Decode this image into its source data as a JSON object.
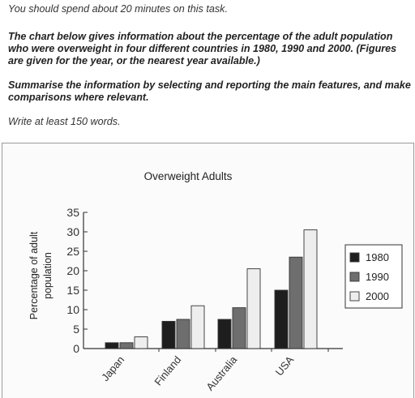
{
  "task": {
    "instruction": "You should spend about 20 minutes on this task.",
    "description": "The chart below gives information about the percentage of the adult population who were overweight in four different countries in 1980, 1990 and 2000. (Figures are given for the year, or the nearest year available.)",
    "prompt": "Summarise the information by selecting and reporting the main features, and make comparisons where relevant.",
    "word_count": "Write at least 150 words."
  },
  "chart_data": {
    "type": "bar",
    "title": "Overweight Adults",
    "ylabel": "Percentage of adult population",
    "xlabel": "",
    "categories": [
      "Japan",
      "Finland",
      "Australia",
      "USA"
    ],
    "series": [
      {
        "name": "1980",
        "values": [
          1.5,
          7,
          7.5,
          15
        ],
        "color": "#1e1e1e"
      },
      {
        "name": "1990",
        "values": [
          1.5,
          7.5,
          10.5,
          23.5
        ],
        "color": "#6e6e6e"
      },
      {
        "name": "2000",
        "values": [
          3,
          11,
          20.5,
          30.5
        ],
        "color": "#eeeeee"
      }
    ],
    "ylim": [
      0,
      35
    ],
    "yticks": [
      0,
      5,
      10,
      15,
      20,
      25,
      30,
      35
    ],
    "legend_position": "right",
    "grid": false
  }
}
